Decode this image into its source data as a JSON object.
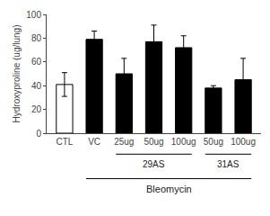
{
  "chart_data": {
    "type": "bar",
    "categories": [
      "CTL",
      "VC",
      "25ug",
      "50ug",
      "100ug",
      "50ug",
      "100ug"
    ],
    "values": [
      41,
      79,
      50,
      77,
      72,
      38,
      45
    ],
    "errors": [
      10,
      7,
      13,
      14,
      10,
      2,
      18
    ],
    "colors": [
      "white",
      "black",
      "black",
      "black",
      "black",
      "black",
      "black"
    ],
    "ylabel": "Hydroxyproline (ug/lung)",
    "ylim": [
      0,
      100
    ],
    "yticks": [
      0,
      20,
      40,
      60,
      80,
      100
    ],
    "grid": false,
    "annotations": [
      {
        "text": "29AS",
        "from": 2,
        "to": 4
      },
      {
        "text": "31AS",
        "from": 5,
        "to": 6
      },
      {
        "text": "Bleomycin",
        "from": 1,
        "to": 6
      }
    ]
  }
}
